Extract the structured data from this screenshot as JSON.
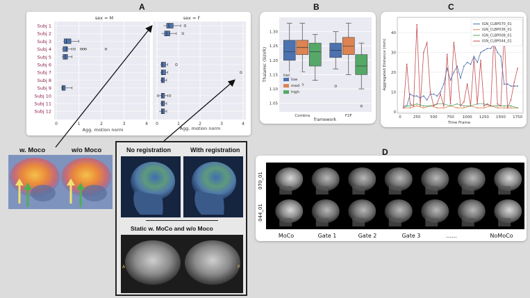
{
  "panels": {
    "a": "A",
    "b": "B",
    "c": "C",
    "d": "D"
  },
  "panel_a": {
    "left_title": "sex = M",
    "right_title": "sex = F",
    "xlabel": "Agg. motion norm",
    "subjects": [
      "Subj 1",
      "Subj 2",
      "Subj 3",
      "Subj 4",
      "Subj 5",
      "Subj 6",
      "Subj 7",
      "Subj 8",
      "Subj 9",
      "Subj 10",
      "Subj 11",
      "Subj 12"
    ],
    "ticks": [
      "0",
      "1",
      "2",
      "3",
      "4"
    ]
  },
  "chart_data": [
    {
      "type": "box",
      "facet": "sex = M",
      "xlabel": "Agg. motion norm",
      "xlim": [
        0,
        4
      ],
      "categories": [
        "Subj 3",
        "Subj 4",
        "Subj 5",
        "Subj 9"
      ],
      "boxes": [
        {
          "cat": "Subj 3",
          "whislo": 0.3,
          "q1": 0.35,
          "med": 0.45,
          "q3": 0.65,
          "whishi": 1.0,
          "fliers": []
        },
        {
          "cat": "Subj 4",
          "whislo": 0.25,
          "q1": 0.3,
          "med": 0.45,
          "q3": 0.5,
          "whishi": 0.7,
          "fliers": [
            0.8,
            1.1,
            1.2,
            1.3,
            2.2
          ]
        },
        {
          "cat": "Subj 5",
          "whislo": 0.25,
          "q1": 0.3,
          "med": 0.4,
          "q3": 0.5,
          "whishi": 0.7,
          "fliers": []
        },
        {
          "cat": "Subj 9",
          "whislo": 0.2,
          "q1": 0.25,
          "med": 0.3,
          "q3": 0.4,
          "whishi": 0.7,
          "fliers": []
        }
      ]
    },
    {
      "type": "box",
      "facet": "sex = F",
      "xlabel": "Agg. motion norm",
      "xlim": [
        0,
        4
      ],
      "categories": [
        "Subj 1",
        "Subj 2",
        "Subj 6",
        "Subj 7",
        "Subj 8",
        "Subj 10",
        "Subj 11",
        "Subj 12"
      ],
      "boxes": [
        {
          "cat": "Subj 1",
          "whislo": 0.3,
          "q1": 0.45,
          "med": 0.55,
          "q3": 0.75,
          "whishi": 1.1,
          "fliers": [
            1.3
          ]
        },
        {
          "cat": "Subj 2",
          "whislo": 0.2,
          "q1": 0.35,
          "med": 0.45,
          "q3": 0.6,
          "whishi": 0.9,
          "fliers": [
            1.2
          ]
        },
        {
          "cat": "Subj 6",
          "whislo": 0.15,
          "q1": 0.2,
          "med": 0.25,
          "q3": 0.4,
          "whishi": 0.5,
          "fliers": [
            0.9
          ]
        },
        {
          "cat": "Subj 7",
          "whislo": 0.15,
          "q1": 0.2,
          "med": 0.25,
          "q3": 0.4,
          "whishi": 0.5,
          "fliers": [
            3.9
          ]
        },
        {
          "cat": "Subj 8",
          "whislo": 0.15,
          "q1": 0.2,
          "med": 0.25,
          "q3": 0.35,
          "whishi": 0.45,
          "fliers": []
        },
        {
          "cat": "Subj 10",
          "whislo": 0.1,
          "q1": 0.2,
          "med": 0.25,
          "q3": 0.35,
          "whishi": 0.5,
          "fliers": [
            0.05,
            0.6
          ]
        },
        {
          "cat": "Subj 11",
          "whislo": 0.15,
          "q1": 0.2,
          "med": 0.25,
          "q3": 0.35,
          "whishi": 0.45,
          "fliers": []
        },
        {
          "cat": "Subj 12",
          "whislo": 0.1,
          "q1": 0.2,
          "med": 0.25,
          "q3": 0.35,
          "whishi": 0.45,
          "fliers": []
        }
      ]
    },
    {
      "type": "box",
      "ylabel": "Thalamic (SUVR)",
      "xlabel": "framework",
      "ylim": [
        1.02,
        1.35
      ],
      "yticks": [
        "1.30",
        "1.25",
        "1.20",
        "1.15",
        "1.10",
        "1.05"
      ],
      "categories": [
        "Combra",
        "F2F"
      ],
      "legend_title": "tier",
      "legend": [
        "low",
        "med",
        "high"
      ],
      "colors": {
        "low": "#4c72b0",
        "med": "#dd8452",
        "high": "#55a868"
      },
      "boxes": [
        {
          "cat": "Combra",
          "tier": "low",
          "whislo": 1.14,
          "q1": 1.2,
          "med": 1.23,
          "q3": 1.27,
          "whishi": 1.33,
          "fliers": []
        },
        {
          "cat": "Combra",
          "tier": "med",
          "whislo": 1.16,
          "q1": 1.22,
          "med": 1.245,
          "q3": 1.27,
          "whishi": 1.33,
          "fliers": [
            1.115
          ]
        },
        {
          "cat": "Combra",
          "tier": "high",
          "whislo": 1.13,
          "q1": 1.18,
          "med": 1.23,
          "q3": 1.26,
          "whishi": 1.29,
          "fliers": []
        },
        {
          "cat": "F2F",
          "tier": "low",
          "whislo": 1.17,
          "q1": 1.21,
          "med": 1.235,
          "q3": 1.26,
          "whishi": 1.3,
          "fliers": [
            1.11
          ]
        },
        {
          "cat": "F2F",
          "tier": "med",
          "whislo": 1.15,
          "q1": 1.22,
          "med": 1.25,
          "q3": 1.28,
          "whishi": 1.33,
          "fliers": []
        },
        {
          "cat": "F2F",
          "tier": "high",
          "whislo": 1.1,
          "q1": 1.15,
          "med": 1.18,
          "q3": 1.22,
          "whishi": 1.26,
          "fliers": [
            1.04
          ]
        }
      ]
    },
    {
      "type": "line",
      "xlabel": "Time Frame",
      "ylabel": "Aggregated Distance (mm)",
      "xlim": [
        0,
        1800
      ],
      "ylim": [
        0,
        47
      ],
      "xticks": [
        "0",
        "250",
        "500",
        "750",
        "1000",
        "1250",
        "1500",
        "1750"
      ],
      "yticks": [
        "40",
        "30",
        "20",
        "10",
        "0"
      ],
      "series": [
        {
          "name": "IGN_CLBP070_01",
          "color": "#4c72b0",
          "x": [
            50,
            100,
            150,
            200,
            250,
            300,
            350,
            400,
            450,
            500,
            550,
            600,
            650,
            700,
            750,
            800,
            850,
            900,
            950,
            1000,
            1050,
            1100,
            1150,
            1200,
            1250,
            1300,
            1350,
            1400,
            1450,
            1500,
            1550,
            1600,
            1650,
            1700,
            1750
          ],
          "y": [
            2,
            3,
            9,
            8,
            8,
            7,
            8,
            6,
            9,
            9,
            8,
            10,
            14,
            22,
            16,
            20,
            23,
            17,
            23,
            25,
            24,
            28,
            25,
            30,
            31,
            32,
            32,
            34,
            30,
            28,
            14,
            14,
            13,
            13,
            13
          ]
        },
        {
          "name": "IGN_CLBP036_01",
          "color": "#dd8452",
          "x": [
            50,
            150,
            250,
            350,
            450,
            550,
            650,
            750,
            850,
            950,
            1050,
            1150,
            1250,
            1350,
            1450,
            1550,
            1650,
            1750
          ],
          "y": [
            2,
            2,
            3,
            2,
            3,
            2,
            2,
            3,
            2,
            2,
            3,
            2,
            2,
            3,
            2,
            2,
            2,
            2
          ]
        },
        {
          "name": "IGN_CLBP008_01",
          "color": "#55a868",
          "x": [
            50,
            150,
            250,
            350,
            450,
            550,
            650,
            750,
            850,
            950,
            1050,
            1150,
            1250,
            1350,
            1450,
            1550,
            1650,
            1750
          ],
          "y": [
            3,
            3,
            4,
            3,
            3,
            4,
            4,
            3,
            4,
            3,
            3,
            4,
            4,
            3,
            3,
            3,
            3,
            2
          ]
        },
        {
          "name": "IGN_CLBP044_01",
          "color": "#c44e52",
          "x": [
            50,
            100,
            150,
            200,
            250,
            300,
            350,
            400,
            450,
            500,
            550,
            600,
            650,
            700,
            750,
            800,
            850,
            900,
            950,
            1000,
            1050,
            1100,
            1150,
            1200,
            1250,
            1300,
            1350,
            1400,
            1450,
            1500,
            1550,
            1600,
            1650,
            1700,
            1750
          ],
          "y": [
            2,
            24,
            4,
            3,
            44,
            3,
            30,
            35,
            10,
            3,
            4,
            9,
            3,
            29,
            4,
            35,
            20,
            3,
            5,
            14,
            3,
            27,
            4,
            26,
            3,
            4,
            3,
            40,
            4,
            3,
            40,
            2,
            6,
            15,
            22
          ]
        }
      ]
    }
  ],
  "left_images": {
    "with_moco": "w. Moco",
    "without_moco": "w/o Moco"
  },
  "registration": {
    "no_reg": "No registration",
    "with_reg": "With registration",
    "static_caption": "Static w. MoCo and w/o Moco",
    "side_label_left": "A",
    "side_label_right": "P"
  },
  "panel_d": {
    "rows": [
      "070_01",
      "044_01"
    ],
    "cols": [
      "MoCo",
      "Gate 1",
      "Gate 2",
      "Gate 3",
      "......",
      "NoMoCo"
    ]
  }
}
